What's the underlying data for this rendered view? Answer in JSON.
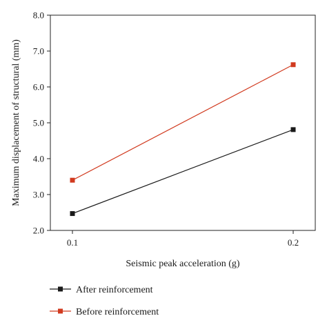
{
  "chart_data": {
    "type": "line",
    "x": [
      0.1,
      0.2
    ],
    "xticks": [
      "0.1",
      "0.2"
    ],
    "xlim": [
      0.09,
      0.21
    ],
    "yticks": [
      "2.0",
      "3.0",
      "4.0",
      "5.0",
      "6.0",
      "7.0",
      "8.0"
    ],
    "ylim": [
      2.0,
      8.0
    ],
    "xlabel": "Seismic peak acceleration (g)",
    "ylabel": "Maximum displacement of structural (mm)",
    "grid": false,
    "legend_position": "bottom",
    "series": [
      {
        "name": "After reinforcement",
        "values": [
          2.47,
          4.81
        ],
        "color": "#1a1a1a",
        "marker": "square"
      },
      {
        "name": "Before reinforcement",
        "values": [
          3.4,
          6.62
        ],
        "color": "#d13a1f",
        "marker": "square"
      }
    ]
  }
}
